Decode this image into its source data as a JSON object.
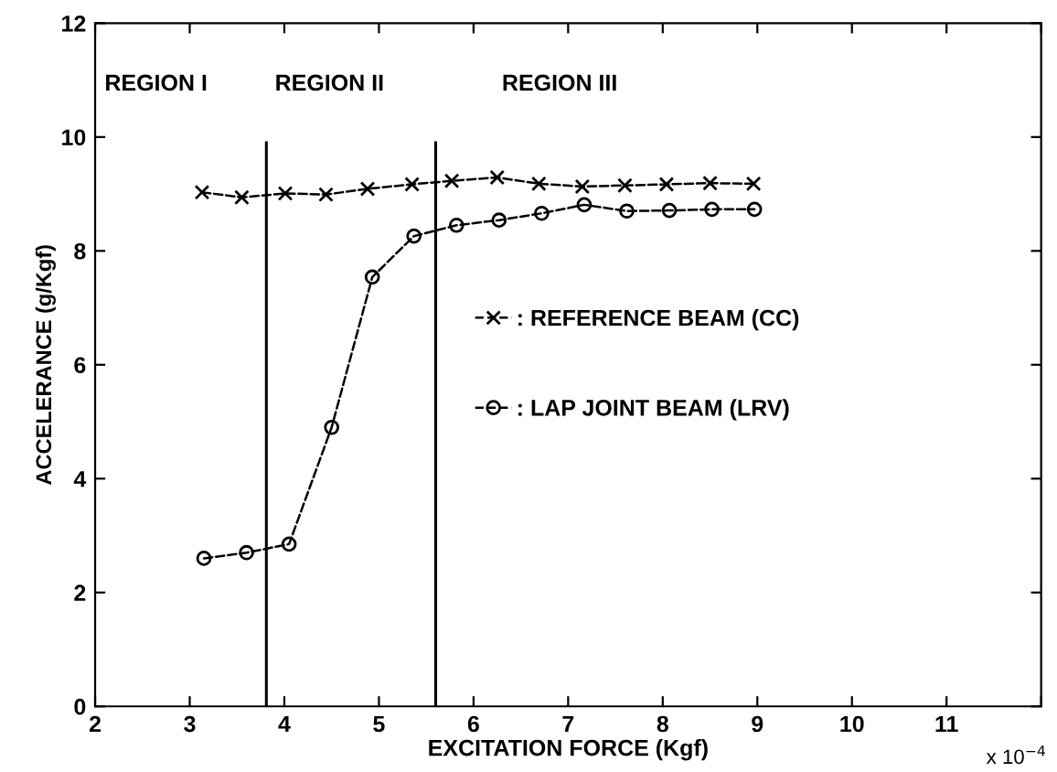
{
  "chart_data": {
    "type": "line",
    "xlabel": "EXCITATION FORCE (Kgf)",
    "ylabel": "ACCELERANCE (g/Kgf)",
    "xlim": [
      2,
      12
    ],
    "xticks": [
      2,
      3,
      4,
      5,
      6,
      7,
      8,
      9,
      10,
      11,
      {
        "value": 12,
        "label": null
      }
    ],
    "ylim": [
      0,
      12
    ],
    "yticks": [
      0,
      2,
      4,
      6,
      8,
      10,
      12
    ],
    "series": [
      {
        "name": ": REFERENCE BEAM (CC)",
        "color": "#000000",
        "marker": "cross",
        "line_style": "dashed",
        "x": [
          3.13,
          3.55,
          4.01,
          4.44,
          4.88,
          5.35,
          5.77,
          6.25,
          6.69,
          7.15,
          7.6,
          8.04,
          8.5,
          8.96
        ],
        "values": [
          9.03,
          8.94,
          9.01,
          8.99,
          9.09,
          9.17,
          9.23,
          9.29,
          9.18,
          9.13,
          9.15,
          9.17,
          9.19,
          9.18
        ]
      },
      {
        "name": ": LAP JOINT BEAM (LRV)",
        "color": "#000000",
        "marker": "circle",
        "line_style": "dashed",
        "x": [
          3.15,
          3.6,
          4.05,
          4.5,
          4.93,
          5.37,
          5.82,
          6.27,
          6.72,
          7.17,
          7.62,
          8.07,
          8.52,
          8.97
        ],
        "values": [
          2.6,
          2.7,
          2.85,
          4.9,
          7.54,
          8.26,
          8.45,
          8.54,
          8.66,
          8.81,
          8.7,
          8.71,
          8.73,
          8.73
        ]
      }
    ],
    "ref_lines": [
      {
        "axis": "x",
        "value": 3.81,
        "color": "#000000"
      },
      {
        "axis": "x",
        "value": 5.6,
        "color": "#000000"
      }
    ],
    "annotations": [
      "REGION I",
      "REGION II",
      "REGION III",
      "x 10$^{−4}$"
    ],
    "legend": "right",
    "grid": false
  }
}
